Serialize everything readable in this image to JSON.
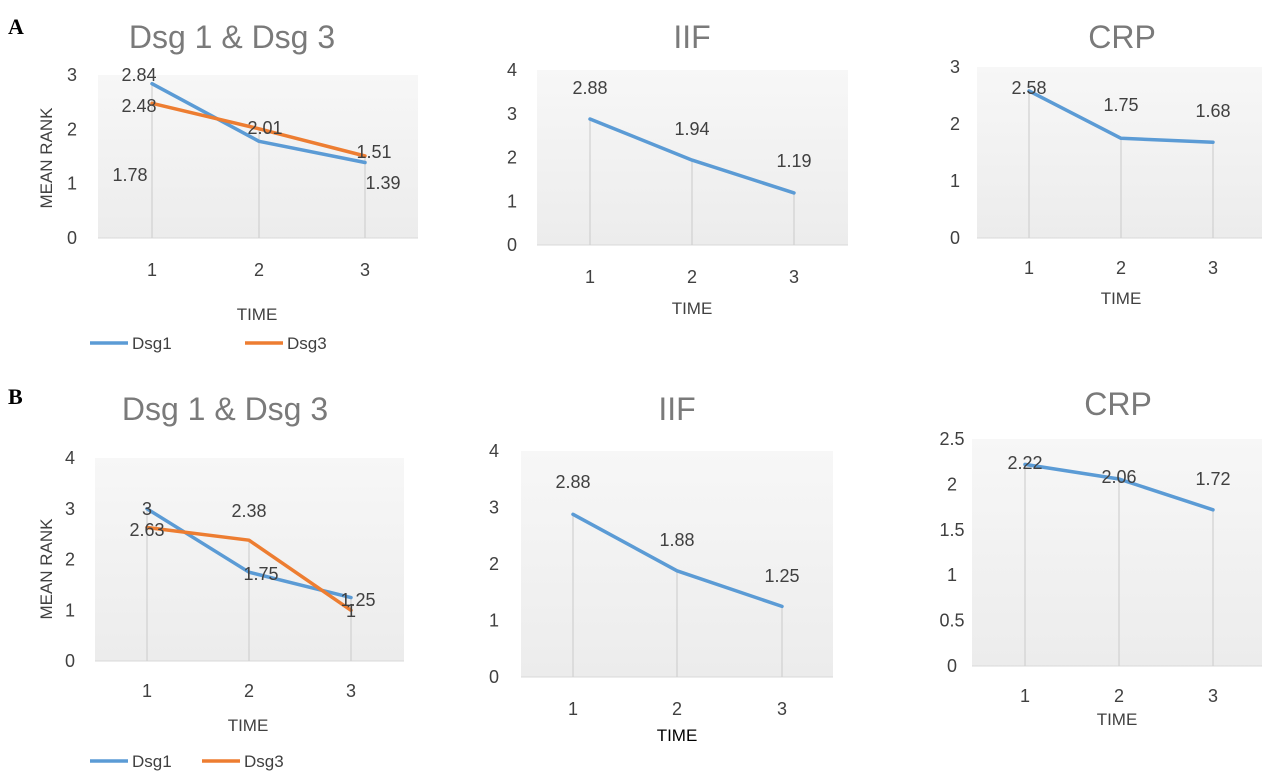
{
  "panels": [
    {
      "letter": "A"
    },
    {
      "letter": "B"
    }
  ],
  "colors": {
    "Dsg1": "#5b9bd5",
    "Dsg3": "#ed7d31",
    "plot_bg": "#f2f2f2",
    "drop_line": "#d0d0d0"
  },
  "chart_data": [
    {
      "type": "line",
      "panel": "A",
      "title": "Dsg 1 & Dsg 3",
      "xlabel": "TIME",
      "ylabel": "MEAN RANK",
      "categories": [
        "1",
        "2",
        "3"
      ],
      "ylim": [
        0,
        3
      ],
      "yticks": [
        "0",
        "1",
        "2",
        "3"
      ],
      "legend": "bottom-left",
      "series": [
        {
          "name": "Dsg1",
          "values": [
            2.84,
            1.78,
            1.39
          ],
          "labels": [
            "2.84",
            "1.78",
            "1.39"
          ]
        },
        {
          "name": "Dsg3",
          "values": [
            2.48,
            2.01,
            1.51
          ],
          "labels": [
            "2.48",
            "2.01",
            "1.51"
          ]
        }
      ]
    },
    {
      "type": "line",
      "panel": "A",
      "title": "IIF",
      "xlabel": "TIME",
      "ylabel": "",
      "categories": [
        "1",
        "2",
        "3"
      ],
      "ylim": [
        0,
        4
      ],
      "yticks": [
        "0",
        "1",
        "2",
        "3",
        "4"
      ],
      "series": [
        {
          "values": [
            2.88,
            1.94,
            1.19
          ],
          "labels": [
            "2.88",
            "1.94",
            "1.19"
          ]
        }
      ]
    },
    {
      "type": "line",
      "panel": "A",
      "title": "CRP",
      "xlabel": "TIME",
      "ylabel": "",
      "categories": [
        "1",
        "2",
        "3"
      ],
      "ylim": [
        0,
        3
      ],
      "yticks": [
        "0",
        "1",
        "2",
        "3"
      ],
      "series": [
        {
          "values": [
            2.58,
            1.75,
            1.68
          ],
          "labels": [
            "2.58",
            "1.75",
            "1.68"
          ]
        }
      ]
    },
    {
      "type": "line",
      "panel": "B",
      "title": "Dsg 1 & Dsg 3",
      "xlabel": "TIME",
      "ylabel": "MEAN RANK",
      "categories": [
        "1",
        "2",
        "3"
      ],
      "ylim": [
        0,
        4
      ],
      "yticks": [
        "0",
        "1",
        "2",
        "3",
        "4"
      ],
      "legend": "bottom-left",
      "series": [
        {
          "name": "Dsg1",
          "values": [
            3,
            1.75,
            1.25
          ],
          "labels": [
            "3",
            "1.75",
            "1.25"
          ]
        },
        {
          "name": "Dsg3",
          "values": [
            2.63,
            2.38,
            1
          ],
          "labels": [
            "2.63",
            "2.38",
            "1"
          ]
        }
      ]
    },
    {
      "type": "line",
      "panel": "B",
      "title": "IIF",
      "xlabel": "TIME",
      "ylabel": "",
      "categories": [
        "1",
        "2",
        "3"
      ],
      "ylim": [
        0,
        4
      ],
      "yticks": [
        "0",
        "1",
        "2",
        "3",
        "4"
      ],
      "series": [
        {
          "values": [
            2.88,
            1.88,
            1.25
          ],
          "labels": [
            "2.88",
            "1.88",
            "1.25"
          ]
        }
      ]
    },
    {
      "type": "line",
      "panel": "B",
      "title": "CRP",
      "xlabel": "TIME",
      "ylabel": "",
      "categories": [
        "1",
        "2",
        "3"
      ],
      "ylim": [
        0,
        2.5
      ],
      "yticks": [
        "0",
        "0.5",
        "1",
        "1.5",
        "2",
        "2.5"
      ],
      "series": [
        {
          "values": [
            2.22,
            2.06,
            1.72
          ],
          "labels": [
            "2.22",
            "2.06",
            "1.72"
          ]
        }
      ]
    }
  ]
}
